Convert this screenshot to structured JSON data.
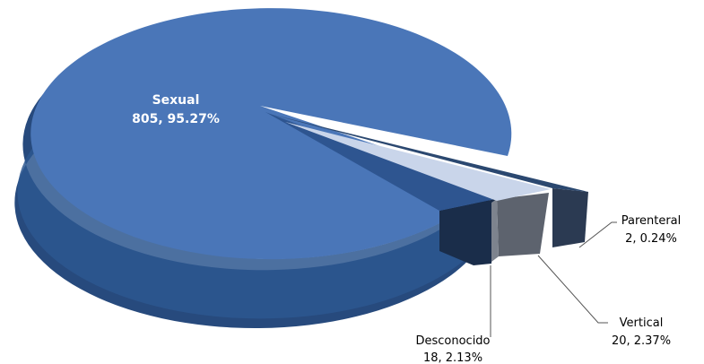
{
  "chart_data": {
    "type": "pie",
    "style": "3d-exploded",
    "slices": [
      {
        "category": "Sexual",
        "value": 805,
        "percent": "95.27%",
        "label": "805, 95.27%",
        "color": "#4a76b8"
      },
      {
        "category": "Parenteral",
        "value": 2,
        "percent": "0.24%",
        "label": "2, 0.24%",
        "color": "#2b4870"
      },
      {
        "category": "Vertical",
        "value": 20,
        "percent": "2.37%",
        "label": "20, 2.37%",
        "color": "#c9d5ea"
      },
      {
        "category": "Desconocido",
        "value": 18,
        "percent": "2.13%",
        "label": "18, 2.13%",
        "color": "#2e5590"
      }
    ],
    "legend": "none"
  }
}
